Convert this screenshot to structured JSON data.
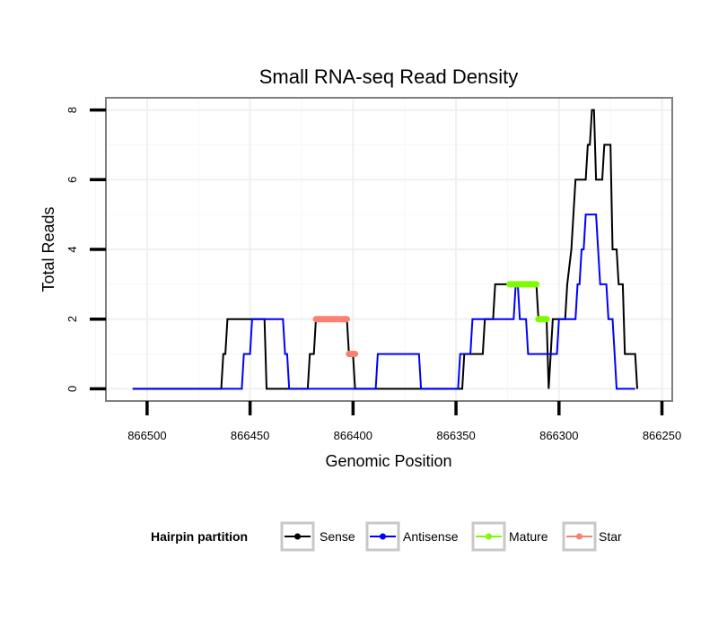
{
  "chart_data": {
    "type": "line",
    "title": "Small RNA-seq Read Density",
    "xlabel": "Genomic Position",
    "ylabel": "Total Reads",
    "xlim": [
      866520,
      866245
    ],
    "ylim": [
      -0.35,
      8.35
    ],
    "x_reversed": true,
    "grid": true,
    "x_ticks": [
      866500,
      866450,
      866400,
      866350,
      866300,
      866250
    ],
    "y_ticks": [
      0,
      2,
      4,
      6,
      8
    ],
    "legend": {
      "title": "Hairpin partition",
      "position": "bottom",
      "entries": [
        {
          "label": "Sense",
          "color": "#000000"
        },
        {
          "label": "Antisense",
          "color": "#0000ff"
        },
        {
          "label": "Mature",
          "color": "#7cfc00"
        },
        {
          "label": "Star",
          "color": "#fa8072"
        }
      ]
    },
    "series": [
      {
        "name": "Sense",
        "color": "#000000",
        "points": [
          [
            866507,
            0
          ],
          [
            866464,
            0
          ],
          [
            866463,
            1
          ],
          [
            866462,
            1
          ],
          [
            866461,
            2
          ],
          [
            866443,
            2
          ],
          [
            866442,
            0
          ],
          [
            866422,
            0
          ],
          [
            866421,
            1
          ],
          [
            866419,
            1
          ],
          [
            866418,
            2
          ],
          [
            866403,
            2
          ],
          [
            866402,
            1
          ],
          [
            866400,
            1
          ],
          [
            866399,
            0
          ],
          [
            866347,
            0
          ],
          [
            866346,
            1
          ],
          [
            866337,
            1
          ],
          [
            866336,
            2
          ],
          [
            866332,
            2
          ],
          [
            866331,
            3
          ],
          [
            866325,
            3
          ],
          [
            866324,
            3
          ],
          [
            866311,
            3
          ],
          [
            866310,
            2
          ],
          [
            866306,
            2
          ],
          [
            866305,
            0
          ],
          [
            866303,
            2
          ],
          [
            866297,
            2
          ],
          [
            866296,
            3
          ],
          [
            866294,
            4
          ],
          [
            866293,
            5
          ],
          [
            866292,
            6
          ],
          [
            866287,
            6
          ],
          [
            866286,
            7
          ],
          [
            866285,
            7
          ],
          [
            866284,
            8
          ],
          [
            866283,
            8
          ],
          [
            866282,
            6
          ],
          [
            866279,
            6
          ],
          [
            866278,
            7
          ],
          [
            866275,
            7
          ],
          [
            866274,
            4
          ],
          [
            866272,
            4
          ],
          [
            866271,
            3
          ],
          [
            866269,
            3
          ],
          [
            866268,
            1
          ],
          [
            866263,
            1
          ],
          [
            866262,
            0
          ]
        ]
      },
      {
        "name": "Antisense",
        "color": "#0000ff",
        "points": [
          [
            866507,
            0
          ],
          [
            866454,
            0
          ],
          [
            866453,
            1
          ],
          [
            866450,
            1
          ],
          [
            866449,
            2
          ],
          [
            866434,
            2
          ],
          [
            866433,
            1
          ],
          [
            866432,
            1
          ],
          [
            866431,
            0
          ],
          [
            866389,
            0
          ],
          [
            866388,
            1
          ],
          [
            866368,
            1
          ],
          [
            866367,
            0
          ],
          [
            866349,
            0
          ],
          [
            866348,
            1
          ],
          [
            866343,
            1
          ],
          [
            866342,
            2
          ],
          [
            866322,
            2
          ],
          [
            866321,
            3
          ],
          [
            866320,
            3
          ],
          [
            866319,
            2
          ],
          [
            866316,
            2
          ],
          [
            866315,
            1
          ],
          [
            866301,
            1
          ],
          [
            866300,
            2
          ],
          [
            866292,
            2
          ],
          [
            866291,
            3
          ],
          [
            866290,
            3
          ],
          [
            866289,
            4
          ],
          [
            866288,
            4
          ],
          [
            866287,
            5
          ],
          [
            866282,
            5
          ],
          [
            866281,
            4
          ],
          [
            866280,
            3
          ],
          [
            866277,
            3
          ],
          [
            866276,
            2
          ],
          [
            866274,
            2
          ],
          [
            866273,
            1
          ],
          [
            866272,
            0
          ],
          [
            866263,
            0
          ]
        ]
      },
      {
        "name": "Mature",
        "color": "#7cfc00",
        "segments": [
          [
            [
              866324,
              3
            ],
            [
              866311,
              3
            ]
          ],
          [
            [
              866310,
              2
            ],
            [
              866306,
              2
            ]
          ]
        ]
      },
      {
        "name": "Star",
        "color": "#fa8072",
        "segments": [
          [
            [
              866418,
              2
            ],
            [
              866403,
              2
            ]
          ],
          [
            [
              866402,
              1
            ],
            [
              866399,
              1
            ]
          ]
        ]
      }
    ]
  }
}
